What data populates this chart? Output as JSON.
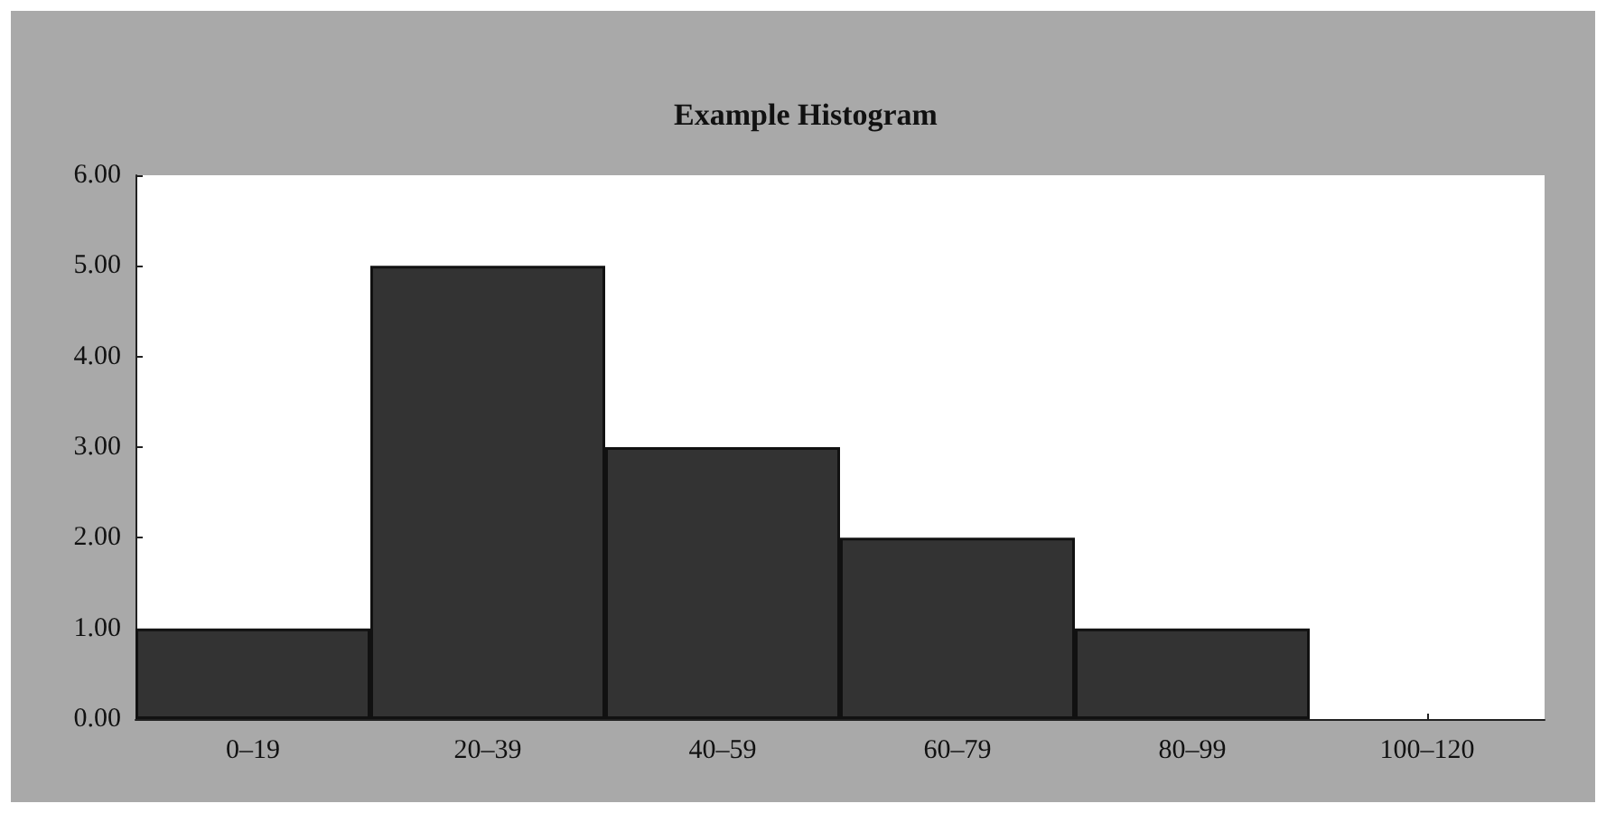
{
  "chart_data": {
    "type": "bar",
    "title": "Example Histogram",
    "categories": [
      "0–19",
      "20–39",
      "40–59",
      "60–79",
      "80–99",
      "100–120"
    ],
    "values": [
      1,
      5,
      3,
      2,
      1,
      0
    ],
    "color": "#333333",
    "ylim": [
      0,
      6
    ],
    "yticks": [
      {
        "value": 0,
        "label": "0.00"
      },
      {
        "value": 1,
        "label": "1.00"
      },
      {
        "value": 2,
        "label": "2.00"
      },
      {
        "value": 3,
        "label": "3.00"
      },
      {
        "value": 4,
        "label": "4.00"
      },
      {
        "value": 5,
        "label": "5.00"
      },
      {
        "value": 6,
        "label": "6.00"
      }
    ],
    "grid": false
  }
}
